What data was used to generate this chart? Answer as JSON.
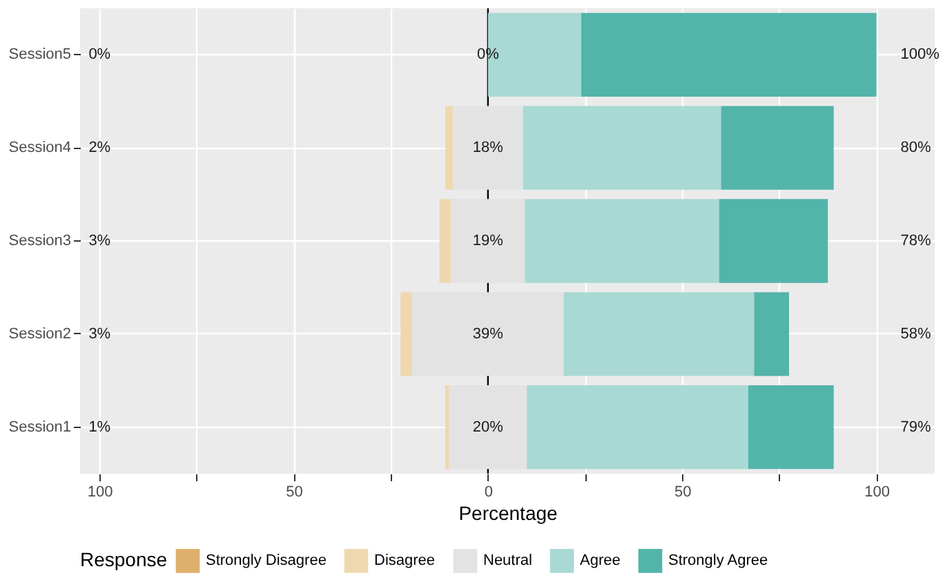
{
  "chart_data": {
    "type": "bar",
    "orientation": "horizontal",
    "xlabel": "Percentage",
    "legend_title": "Response",
    "legend": "bottom",
    "grid": true,
    "categories": [
      "Session5",
      "Session4",
      "Session3",
      "Session2",
      "Session1"
    ],
    "series": [
      {
        "name": "Strongly Disagree",
        "color": "#dfb06b",
        "base": [
          null,
          null,
          null,
          null,
          null
        ],
        "values": [
          null,
          null,
          null,
          null,
          null
        ]
      },
      {
        "name": "Disagree",
        "color": "#efd8b0",
        "base": [
          null,
          -11,
          -12.5,
          -22.5,
          -11
        ],
        "values": [
          null,
          2,
          3,
          3,
          1
        ]
      },
      {
        "name": "Neutral",
        "color": "#e3e3e3",
        "base": [
          null,
          -9,
          -9.5,
          -19.5,
          -10
        ],
        "values": [
          null,
          18,
          19,
          39,
          20
        ]
      },
      {
        "name": "Agree",
        "color": "#a9d9d4",
        "base": [
          0,
          9,
          9.5,
          19.5,
          10
        ],
        "values": [
          24,
          51,
          50,
          49,
          57
        ]
      },
      {
        "name": "Strongly Agree",
        "color": "#53b4aa",
        "base": [
          24,
          60,
          59.5,
          68.5,
          67
        ],
        "values": [
          76,
          29,
          28,
          9,
          22
        ]
      }
    ],
    "xlim": [
      -105,
      115
    ],
    "xticks": [
      {
        "value": -100,
        "label": "100"
      },
      {
        "value": -75,
        "label": null
      },
      {
        "value": -50,
        "label": "50"
      },
      {
        "value": -25,
        "label": null
      },
      0,
      {
        "value": 25,
        "label": null
      },
      50,
      {
        "value": 75,
        "label": null
      },
      100
    ],
    "ref_lines": [
      {
        "axis": "x",
        "value": 0,
        "color": "#000000"
      }
    ],
    "annotations": [
      "0%",
      "2%",
      "3%",
      "3%",
      "1%",
      "0%",
      "18%",
      "19%",
      "39%",
      "20%",
      "100%",
      "80%",
      "78%",
      "58%",
      "79%"
    ]
  }
}
